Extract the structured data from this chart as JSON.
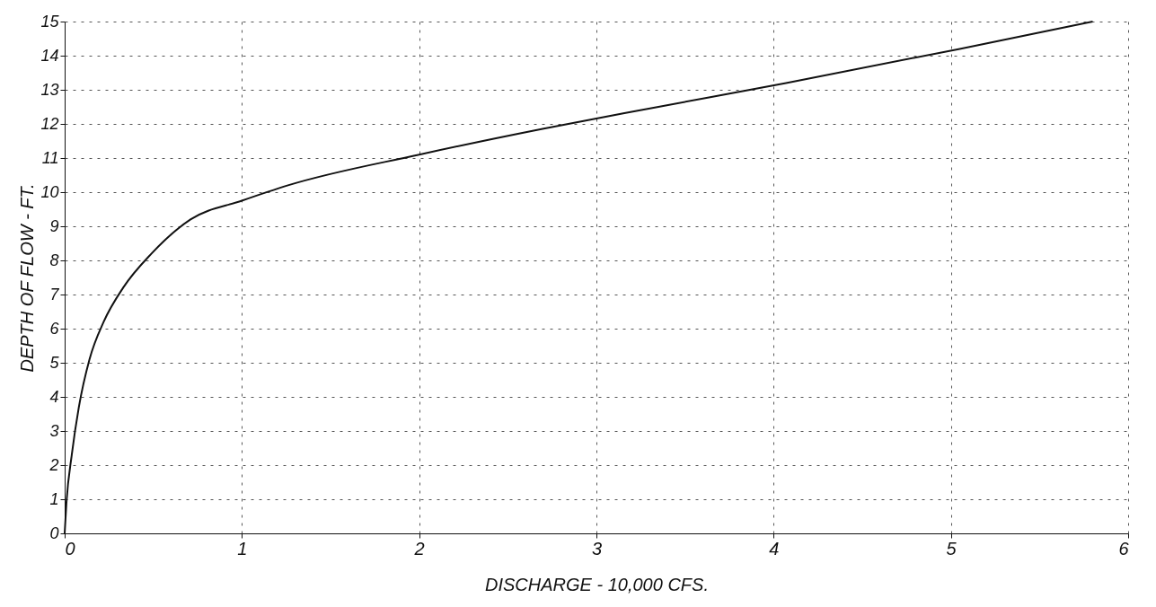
{
  "chart_data": {
    "type": "line",
    "xlabel": "DISCHARGE - 10,000 CFS.",
    "ylabel": "DEPTH OF FLOW - FT.",
    "x": [
      0,
      0.01,
      0.04,
      0.08,
      0.14,
      0.22,
      0.33,
      0.49,
      0.71,
      1.0,
      1.26,
      2.0,
      2.69,
      3.35,
      4.07,
      5.05,
      5.8
    ],
    "series": [
      {
        "color": "#111111",
        "values": [
          0,
          0.9,
          2.3,
          3.7,
          5.1,
          6.2,
          7.2,
          8.2,
          9.2,
          9.75,
          10.2,
          11.1,
          11.85,
          12.5,
          13.2,
          14.2,
          15
        ]
      }
    ],
    "xlim": [
      0,
      6
    ],
    "ylim": [
      0,
      15
    ],
    "xticks": [
      0,
      1,
      2,
      3,
      4,
      5,
      6
    ],
    "yticks": [
      0,
      1,
      2,
      3,
      4,
      5,
      6,
      7,
      8,
      9,
      10,
      11,
      12,
      13,
      14,
      15
    ],
    "grid": true,
    "marker": "none",
    "line_style": "solid"
  }
}
